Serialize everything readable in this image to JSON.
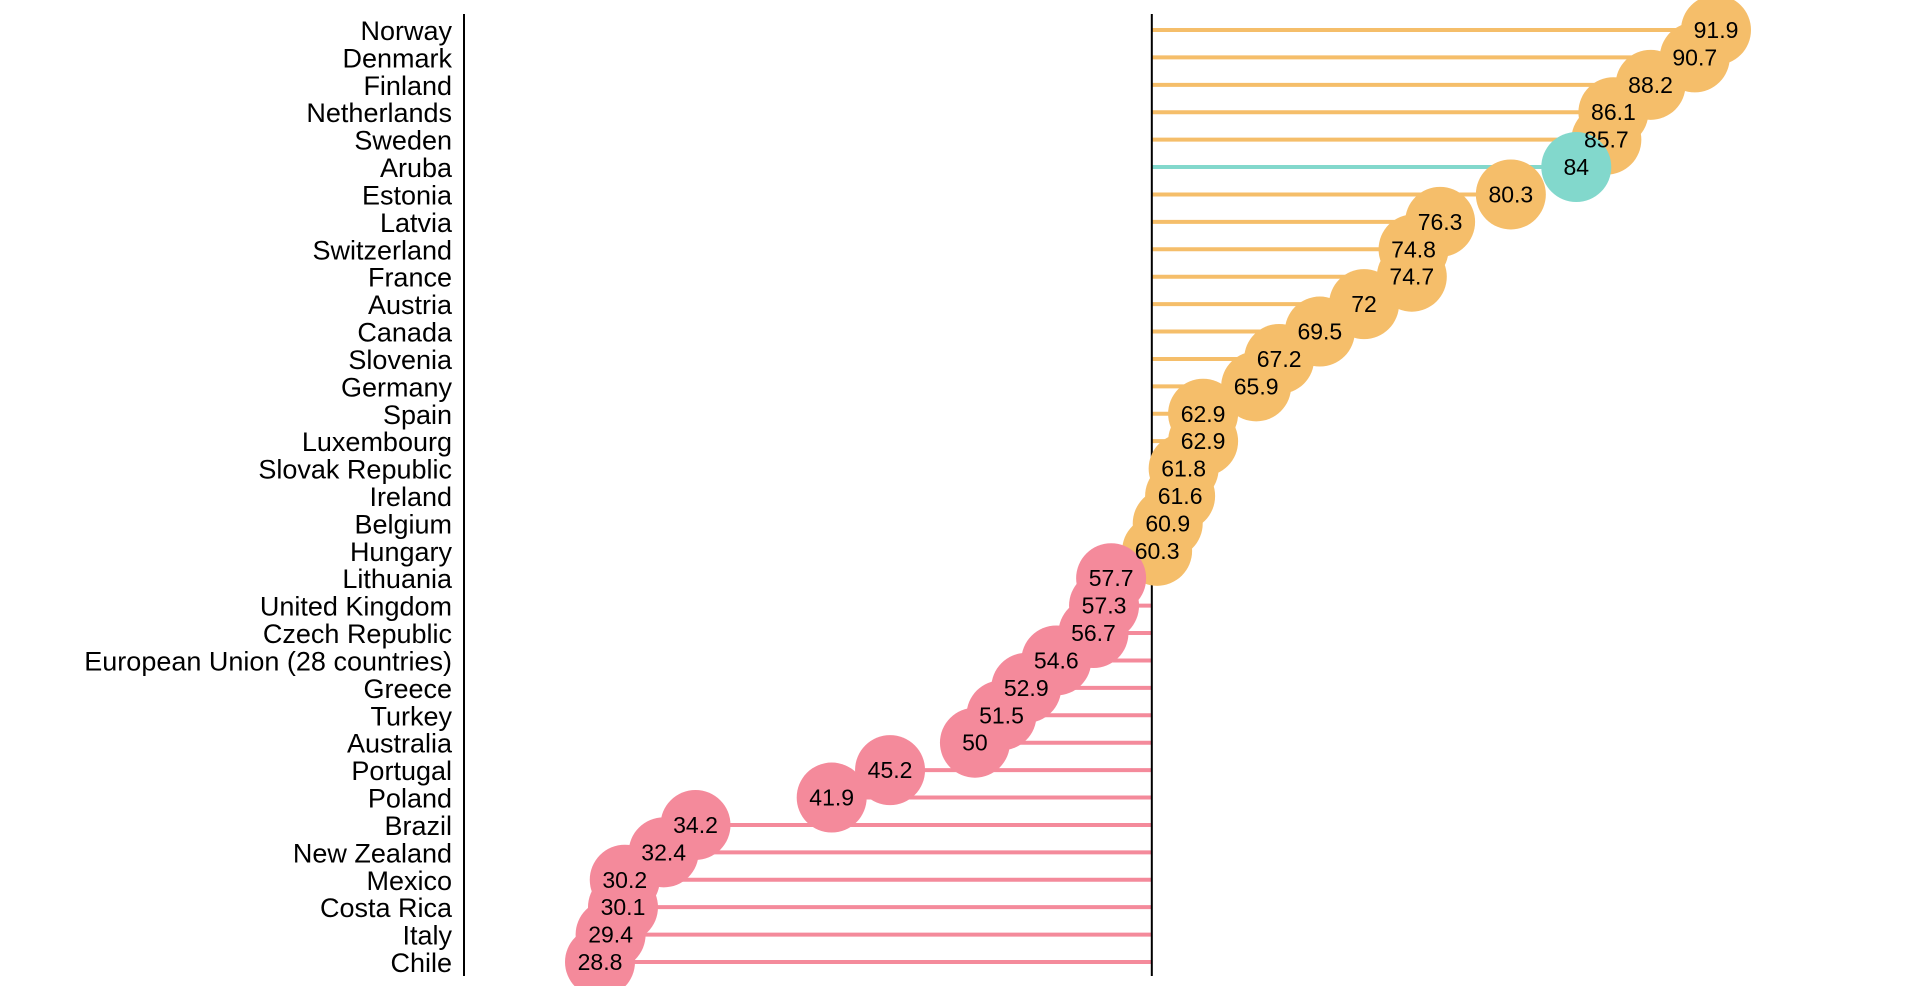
{
  "chart_data": {
    "type": "lollipop",
    "title": "",
    "xlabel": "",
    "ylabel": "",
    "baseline": 60,
    "grid": false,
    "legend": "none",
    "colors": {
      "above": "#F5BE6A",
      "below": "#F48A9B",
      "highlight": "#82D8CC",
      "axis": "#000000"
    },
    "categories": [
      "Norway",
      "Denmark",
      "Finland",
      "Netherlands",
      "Sweden",
      "Aruba",
      "Estonia",
      "Latvia",
      "Switzerland",
      "France",
      "Austria",
      "Canada",
      "Slovenia",
      "Germany",
      "Spain",
      "Luxembourg",
      "Slovak Republic",
      "Ireland",
      "Belgium",
      "Hungary",
      "Lithuania",
      "United Kingdom",
      "Czech Republic",
      "European Union (28 countries)",
      "Greece",
      "Turkey",
      "Australia",
      "Portugal",
      "Poland",
      "Brazil",
      "New Zealand",
      "Mexico",
      "Costa Rica",
      "Italy",
      "Chile"
    ],
    "values": [
      91.9,
      90.7,
      88.2,
      86.1,
      85.7,
      84,
      80.3,
      76.3,
      74.8,
      74.7,
      72,
      69.5,
      67.2,
      65.9,
      62.9,
      62.9,
      61.8,
      61.6,
      60.9,
      60.3,
      57.7,
      57.3,
      56.7,
      54.6,
      52.9,
      51.5,
      50,
      45.2,
      41.9,
      34.2,
      32.4,
      30.2,
      30.1,
      29.4,
      28.8
    ],
    "value_labels": [
      "91.9",
      "90.7",
      "88.2",
      "86.1",
      "85.7",
      "84",
      "80.3",
      "76.3",
      "74.8",
      "74.7",
      "72",
      "69.5",
      "67.2",
      "65.9",
      "62.9",
      "62.9",
      "61.8",
      "61.6",
      "60.9",
      "60.3",
      "57.7",
      "57.3",
      "56.7",
      "54.6",
      "52.9",
      "51.5",
      "50",
      "45.2",
      "41.9",
      "34.2",
      "32.4",
      "30.2",
      "30.1",
      "29.4",
      "28.8"
    ],
    "highlight": [
      "Aruba"
    ]
  }
}
